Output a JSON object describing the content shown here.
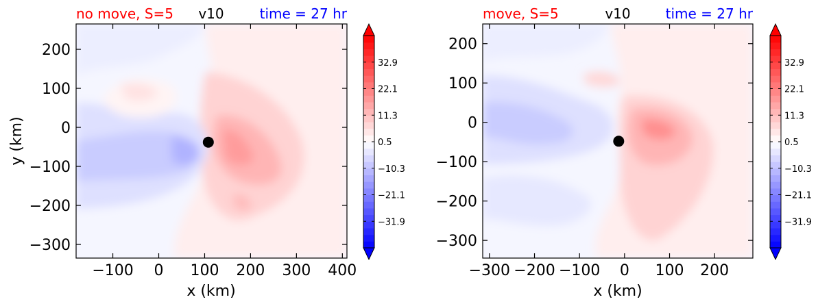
{
  "chart_data": [
    {
      "type": "heatmap",
      "title_left": "no move, S=5",
      "title_center": "v10",
      "title_right": "time = 27 hr",
      "title_left_color": "#ff0000",
      "title_center_color": "#000000",
      "title_right_color": "#0000ff",
      "xlabel": "x (km)",
      "ylabel": "y (km)",
      "xlim": [
        -180,
        410
      ],
      "ylim": [
        -335,
        265
      ],
      "xticks": [
        -100,
        0,
        100,
        200,
        300,
        400
      ],
      "yticks": [
        200,
        100,
        0,
        -100,
        -200,
        -300
      ],
      "xtick_labels": [
        "−100",
        "0",
        "100",
        "200",
        "300",
        "400"
      ],
      "ytick_labels": [
        "200",
        "100",
        "0",
        "−100",
        "−200",
        "−300"
      ],
      "center": [
        108,
        -38
      ],
      "colorbar": {
        "ticks": [
          32.9,
          22.1,
          11.3,
          0.5,
          -10.3,
          -21.1,
          -31.9
        ],
        "tick_labels": [
          "32.9",
          "22.1",
          "11.3",
          "0.5",
          "−10.3",
          "−21.1",
          "−31.9"
        ],
        "vmin": -42.7,
        "vmax": 43.7,
        "extend": "both",
        "colormap": "bwr",
        "color_min": "#0000ff",
        "color_mid": "#ffffff",
        "color_max": "#ff0000"
      }
    },
    {
      "type": "heatmap",
      "title_left": "move, S=5",
      "title_center": "v10",
      "title_right": "time = 27 hr",
      "title_left_color": "#ff0000",
      "title_center_color": "#000000",
      "title_right_color": "#0000ff",
      "xlabel": "x (km)",
      "ylabel": "",
      "xlim": [
        -315,
        285
      ],
      "ylim": [
        -345,
        250
      ],
      "xticks": [
        -300,
        -200,
        -100,
        0,
        100,
        200
      ],
      "yticks": [
        200,
        100,
        0,
        -100,
        -200,
        -300
      ],
      "xtick_labels": [
        "−300",
        "−200",
        "−100",
        "0",
        "100",
        "200"
      ],
      "ytick_labels": [
        "200",
        "100",
        "0",
        "−100",
        "−200",
        "−300"
      ],
      "center": [
        -13,
        -48
      ],
      "colorbar": {
        "ticks": [
          32.9,
          22.1,
          11.3,
          0.5,
          -10.3,
          -21.1,
          -31.9
        ],
        "tick_labels": [
          "32.9",
          "22.1",
          "11.3",
          "0.5",
          "−10.3",
          "−21.1",
          "−31.9"
        ],
        "vmin": -42.7,
        "vmax": 43.7,
        "extend": "both",
        "colormap": "bwr",
        "color_min": "#0000ff",
        "color_mid": "#ffffff",
        "color_max": "#ff0000"
      }
    }
  ]
}
